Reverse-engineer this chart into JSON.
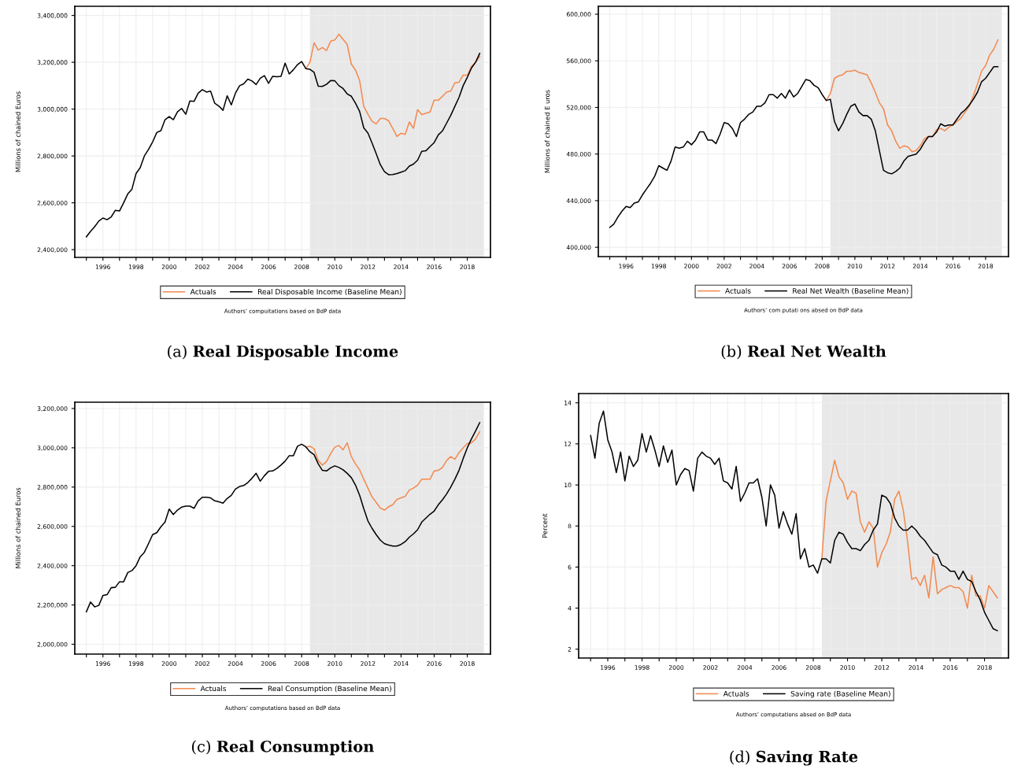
{
  "chart_data": [
    {
      "type": "line",
      "title": "(a) Real Disposable Income",
      "ylabel": "Millions of chained Euros",
      "annotations": [
        "Authors’ compuitations based on BdP data"
      ],
      "x": [
        1995,
        1995.25,
        1995.5,
        1995.75,
        1996,
        1996.25,
        1996.5,
        1996.75,
        1997,
        1997.25,
        1997.5,
        1997.75,
        1998,
        1998.25,
        1998.5,
        1998.75,
        1999,
        1999.25,
        1999.5,
        1999.75,
        2000,
        2000.25,
        2000.5,
        2000.75,
        2001,
        2001.25,
        2001.5,
        2001.75,
        2002,
        2002.25,
        2002.5,
        2002.75,
        2003,
        2003.25,
        2003.5,
        2003.75,
        2004,
        2004.25,
        2004.5,
        2004.75,
        2005,
        2005.25,
        2005.5,
        2005.75,
        2006,
        2006.25,
        2006.5,
        2006.75,
        2007,
        2007.25,
        2007.5,
        2007.75,
        2008,
        2008.25,
        2008.5,
        2008.75,
        2009,
        2009.25,
        2009.5,
        2009.75,
        2010,
        2010.25,
        2010.5,
        2010.75,
        2011,
        2011.25,
        2011.5,
        2011.75,
        2012,
        2012.25,
        2012.5,
        2012.75,
        2013,
        2013.25,
        2013.5,
        2013.75,
        2014,
        2014.25,
        2014.5,
        2014.75,
        2015,
        2015.25,
        2015.5,
        2015.75,
        2016,
        2016.25,
        2016.5,
        2016.75,
        2017,
        2017.25,
        2017.5,
        2017.75,
        2018,
        2018.25,
        2018.5,
        2018.75
      ],
      "series": [
        {
          "name": "Actuals",
          "color": "#f4894f",
          "values": [
            null,
            null,
            null,
            null,
            null,
            null,
            null,
            null,
            null,
            null,
            null,
            null,
            null,
            null,
            null,
            null,
            null,
            null,
            null,
            null,
            null,
            null,
            null,
            null,
            null,
            null,
            null,
            null,
            null,
            null,
            null,
            null,
            null,
            null,
            null,
            null,
            null,
            null,
            null,
            null,
            null,
            null,
            null,
            null,
            null,
            null,
            null,
            null,
            null,
            null,
            null,
            null,
            null,
            3173000,
            3200000,
            3283000,
            3252000,
            3263000,
            3250000,
            3290000,
            3295000,
            3320000,
            3298000,
            3276000,
            3192000,
            3167000,
            3122000,
            3012000,
            2978000,
            2948000,
            2937000,
            2960000,
            2960000,
            2950000,
            2918000,
            2883000,
            2897000,
            2892000,
            2945000,
            2918000,
            2998000,
            2977000,
            2982000,
            2988000,
            3038000,
            3038000,
            3055000,
            3073000,
            3077000,
            3112000,
            3115000,
            3145000,
            3145000,
            3182000,
            3200000,
            3225000
          ]
        },
        {
          "name": "Real Disposable Income (Baseline Mean)",
          "color": "#000000",
          "values": [
            2455000,
            2478000,
            2498000,
            2522000,
            2535000,
            2528000,
            2540000,
            2568000,
            2565000,
            2600000,
            2638000,
            2658000,
            2725000,
            2750000,
            2800000,
            2828000,
            2860000,
            2900000,
            2908000,
            2955000,
            2968000,
            2955000,
            2988000,
            3003000,
            2978000,
            3035000,
            3033000,
            3068000,
            3083000,
            3073000,
            3077000,
            3025000,
            3013000,
            2995000,
            3057000,
            3018000,
            3068000,
            3100000,
            3108000,
            3128000,
            3120000,
            3105000,
            3132000,
            3143000,
            3110000,
            3140000,
            3138000,
            3140000,
            3196000,
            3150000,
            3168000,
            3190000,
            3203000,
            3173000,
            3170000,
            3157000,
            3098000,
            3097000,
            3106000,
            3122000,
            3121000,
            3100000,
            3088000,
            3065000,
            3055000,
            3025000,
            2990000,
            2920000,
            2898000,
            2855000,
            2810000,
            2763000,
            2733000,
            2720000,
            2721000,
            2725000,
            2731000,
            2737000,
            2757000,
            2765000,
            2782000,
            2820000,
            2822000,
            2840000,
            2857000,
            2890000,
            2907000,
            2940000,
            2973000,
            3012000,
            3050000,
            3100000,
            3135000,
            3175000,
            3200000,
            3238000
          ]
        }
      ],
      "xlim": [
        1994.3,
        2019.4
      ],
      "ylim": [
        2367000,
        3439000
      ],
      "xticks": [
        {
          "value": 1995,
          "label": null
        },
        {
          "value": 1996,
          "label": "1996"
        },
        {
          "value": 1997,
          "label": null
        },
        {
          "value": 1998,
          "label": "1998"
        },
        {
          "value": 1999,
          "label": null
        },
        {
          "value": 2000,
          "label": "2000"
        },
        {
          "value": 2001,
          "label": null
        },
        {
          "value": 2002,
          "label": "2002"
        },
        {
          "value": 2003,
          "label": null
        },
        {
          "value": 2004,
          "label": "2004"
        },
        {
          "value": 2005,
          "label": null
        },
        {
          "value": 2006,
          "label": "2006"
        },
        {
          "value": 2007,
          "label": null
        },
        {
          "value": 2008,
          "label": "2008"
        },
        {
          "value": 2009,
          "label": null
        },
        {
          "value": 2010,
          "label": "2010"
        },
        {
          "value": 2011,
          "label": null
        },
        {
          "value": 2012,
          "label": "2012"
        },
        {
          "value": 2013,
          "label": null
        },
        {
          "value": 2014,
          "label": "2014"
        },
        {
          "value": 2015,
          "label": null
        },
        {
          "value": 2016,
          "label": "2016"
        },
        {
          "value": 2017,
          "label": null
        },
        {
          "value": 2018,
          "label": "2018"
        }
      ],
      "yticks": [
        {
          "value": 2400000,
          "label": "2,400,000"
        },
        {
          "value": 2600000,
          "label": "2,600,000"
        },
        {
          "value": 2800000,
          "label": "2,800,000"
        },
        {
          "value": 3000000,
          "label": "3,000,000"
        },
        {
          "value": 3200000,
          "label": "3,200,000"
        },
        {
          "value": 3400000,
          "label": "3,400,000"
        }
      ],
      "bands": [
        {
          "axis": "x",
          "from": 2008.5,
          "to": 2019.0,
          "color": "#e8e8e8"
        }
      ],
      "grid": true,
      "legend": "bottom",
      "line_style": "solid",
      "marker": "none"
    },
    {
      "type": "line",
      "title": "(b) Real Net Wealth",
      "ylabel": "Millions of chained E uros",
      "annotations": [
        "Authors’ com putati ons absed on BdP data"
      ],
      "x": [
        1995,
        1995.25,
        1995.5,
        1995.75,
        1996,
        1996.25,
        1996.5,
        1996.75,
        1997,
        1997.25,
        1997.5,
        1997.75,
        1998,
        1998.25,
        1998.5,
        1998.75,
        1999,
        1999.25,
        1999.5,
        1999.75,
        2000,
        2000.25,
        2000.5,
        2000.75,
        2001,
        2001.25,
        2001.5,
        2001.75,
        2002,
        2002.25,
        2002.5,
        2002.75,
        2003,
        2003.25,
        2003.5,
        2003.75,
        2004,
        2004.25,
        2004.5,
        2004.75,
        2005,
        2005.25,
        2005.5,
        2005.75,
        2006,
        2006.25,
        2006.5,
        2006.75,
        2007,
        2007.25,
        2007.5,
        2007.75,
        2008,
        2008.25,
        2008.5,
        2008.75,
        2009,
        2009.25,
        2009.5,
        2009.75,
        2010,
        2010.25,
        2010.5,
        2010.75,
        2011,
        2011.25,
        2011.5,
        2011.75,
        2012,
        2012.25,
        2012.5,
        2012.75,
        2013,
        2013.25,
        2013.5,
        2013.75,
        2014,
        2014.25,
        2014.5,
        2014.75,
        2015,
        2015.25,
        2015.5,
        2015.75,
        2016,
        2016.25,
        2016.5,
        2016.75,
        2017,
        2017.25,
        2017.5,
        2017.75,
        2018,
        2018.25,
        2018.5,
        2018.75
      ],
      "series": [
        {
          "name": "Actuals",
          "color": "#f4894f",
          "values": [
            null,
            null,
            null,
            null,
            null,
            null,
            null,
            null,
            null,
            null,
            null,
            null,
            null,
            null,
            null,
            null,
            null,
            null,
            null,
            null,
            null,
            null,
            null,
            null,
            null,
            null,
            null,
            null,
            null,
            null,
            null,
            null,
            null,
            null,
            null,
            null,
            null,
            null,
            null,
            null,
            null,
            null,
            null,
            null,
            null,
            null,
            null,
            null,
            null,
            null,
            null,
            null,
            null,
            526000,
            532000,
            545000,
            547000,
            548000,
            551000,
            551000,
            552000,
            550000,
            549000,
            548000,
            541000,
            533000,
            524000,
            519000,
            505000,
            500000,
            491000,
            485000,
            487000,
            486000,
            482000,
            483000,
            487000,
            493000,
            495000,
            495000,
            501000,
            502000,
            500000,
            503000,
            505000,
            508000,
            511000,
            516000,
            521000,
            530000,
            540000,
            551000,
            556000,
            565000,
            570000,
            578000
          ]
        },
        {
          "name": "Real Net Wealth (Baseline Mean)",
          "color": "#000000",
          "values": [
            417000,
            420000,
            426000,
            431000,
            435000,
            434000,
            438000,
            439000,
            445000,
            450000,
            455000,
            461000,
            470000,
            468000,
            466000,
            474000,
            486000,
            485000,
            486000,
            491000,
            488000,
            492000,
            499000,
            499000,
            492000,
            492000,
            489000,
            497000,
            507000,
            506000,
            502000,
            495000,
            507000,
            510000,
            514000,
            516000,
            521000,
            521000,
            524000,
            531000,
            531000,
            528000,
            532000,
            528000,
            535000,
            529000,
            532000,
            538000,
            544000,
            543000,
            539000,
            537000,
            531000,
            526000,
            527000,
            508000,
            500000,
            506000,
            514000,
            521000,
            523000,
            516000,
            513000,
            513000,
            510000,
            500000,
            483000,
            466000,
            464000,
            463000,
            465000,
            468000,
            474000,
            478000,
            479000,
            480000,
            484000,
            490000,
            495000,
            495000,
            499000,
            506000,
            504000,
            505000,
            505000,
            510000,
            515000,
            518000,
            522000,
            527000,
            533000,
            542000,
            545000,
            550000,
            555000,
            555000
          ]
        }
      ],
      "xlim": [
        1994.3,
        2019.4
      ],
      "ylim": [
        392000,
        606800
      ],
      "xticks": [
        {
          "value": 1995,
          "label": null
        },
        {
          "value": 1996,
          "label": "1996"
        },
        {
          "value": 1997,
          "label": null
        },
        {
          "value": 1998,
          "label": "1998"
        },
        {
          "value": 1999,
          "label": null
        },
        {
          "value": 2000,
          "label": "2000"
        },
        {
          "value": 2001,
          "label": null
        },
        {
          "value": 2002,
          "label": "2002"
        },
        {
          "value": 2003,
          "label": null
        },
        {
          "value": 2004,
          "label": "2004"
        },
        {
          "value": 2005,
          "label": null
        },
        {
          "value": 2006,
          "label": "2006"
        },
        {
          "value": 2007,
          "label": null
        },
        {
          "value": 2008,
          "label": "2008"
        },
        {
          "value": 2009,
          "label": null
        },
        {
          "value": 2010,
          "label": "2010"
        },
        {
          "value": 2011,
          "label": null
        },
        {
          "value": 2012,
          "label": "2012"
        },
        {
          "value": 2013,
          "label": null
        },
        {
          "value": 2014,
          "label": "2014"
        },
        {
          "value": 2015,
          "label": null
        },
        {
          "value": 2016,
          "label": "2016"
        },
        {
          "value": 2017,
          "label": null
        },
        {
          "value": 2018,
          "label": "2018"
        }
      ],
      "yticks": [
        {
          "value": 400000,
          "label": "400,000"
        },
        {
          "value": 440000,
          "label": "440,000"
        },
        {
          "value": 480000,
          "label": "480,000"
        },
        {
          "value": 520000,
          "label": "520,000"
        },
        {
          "value": 560000,
          "label": "560,000"
        },
        {
          "value": 600000,
          "label": "600,000"
        }
      ],
      "bands": [
        {
          "axis": "x",
          "from": 2008.5,
          "to": 2019.0,
          "color": "#e8e8e8"
        }
      ],
      "grid": true,
      "legend": "bottom",
      "line_style": "solid",
      "marker": "none"
    },
    {
      "type": "line",
      "title": "(c) Real Consumption",
      "ylabel": "Millions of chained Euros",
      "annotations": [
        "Authors’ computations based on BdP data"
      ],
      "x": [
        1995,
        1995.25,
        1995.5,
        1995.75,
        1996,
        1996.25,
        1996.5,
        1996.75,
        1997,
        1997.25,
        1997.5,
        1997.75,
        1998,
        1998.25,
        1998.5,
        1998.75,
        1999,
        1999.25,
        1999.5,
        1999.75,
        2000,
        2000.25,
        2000.5,
        2000.75,
        2001,
        2001.25,
        2001.5,
        2001.75,
        2002,
        2002.25,
        2002.5,
        2002.75,
        2003,
        2003.25,
        2003.5,
        2003.75,
        2004,
        2004.25,
        2004.5,
        2004.75,
        2005,
        2005.25,
        2005.5,
        2005.75,
        2006,
        2006.25,
        2006.5,
        2006.75,
        2007,
        2007.25,
        2007.5,
        2007.75,
        2008,
        2008.25,
        2008.5,
        2008.75,
        2009,
        2009.25,
        2009.5,
        2009.75,
        2010,
        2010.25,
        2010.5,
        2010.75,
        2011,
        2011.25,
        2011.5,
        2011.75,
        2012,
        2012.25,
        2012.5,
        2012.75,
        2013,
        2013.25,
        2013.5,
        2013.75,
        2014,
        2014.25,
        2014.5,
        2014.75,
        2015,
        2015.25,
        2015.5,
        2015.75,
        2016,
        2016.25,
        2016.5,
        2016.75,
        2017,
        2017.25,
        2017.5,
        2017.75,
        2018,
        2018.25,
        2018.5,
        2018.75
      ],
      "series": [
        {
          "name": "Actuals",
          "color": "#f4894f",
          "values": [
            null,
            null,
            null,
            null,
            null,
            null,
            null,
            null,
            null,
            null,
            null,
            null,
            null,
            null,
            null,
            null,
            null,
            null,
            null,
            null,
            null,
            null,
            null,
            null,
            null,
            null,
            null,
            null,
            null,
            null,
            null,
            null,
            null,
            null,
            null,
            null,
            null,
            null,
            null,
            null,
            null,
            null,
            null,
            null,
            null,
            null,
            null,
            null,
            null,
            null,
            null,
            null,
            null,
            3005000,
            3008000,
            2995000,
            2935000,
            2912000,
            2930000,
            2970000,
            3003000,
            3012000,
            2990000,
            3025000,
            2955000,
            2918000,
            2888000,
            2840000,
            2795000,
            2750000,
            2722000,
            2693000,
            2683000,
            2700000,
            2710000,
            2737000,
            2745000,
            2753000,
            2785000,
            2795000,
            2810000,
            2840000,
            2840000,
            2840000,
            2882000,
            2885000,
            2900000,
            2935000,
            2955000,
            2942000,
            2975000,
            3000000,
            3022000,
            3025000,
            3045000,
            3082000
          ]
        },
        {
          "name": "Real Consumption (Baseline Mean)",
          "color": "#000000",
          "values": [
            2165000,
            2215000,
            2190000,
            2198000,
            2248000,
            2252000,
            2288000,
            2290000,
            2318000,
            2318000,
            2365000,
            2375000,
            2400000,
            2445000,
            2468000,
            2512000,
            2558000,
            2568000,
            2598000,
            2622000,
            2688000,
            2660000,
            2683000,
            2698000,
            2703000,
            2703000,
            2692000,
            2730000,
            2748000,
            2748000,
            2745000,
            2730000,
            2725000,
            2718000,
            2742000,
            2758000,
            2790000,
            2803000,
            2808000,
            2823000,
            2845000,
            2870000,
            2830000,
            2858000,
            2880000,
            2882000,
            2895000,
            2912000,
            2932000,
            2960000,
            2960000,
            3008000,
            3018000,
            3005000,
            2980000,
            2965000,
            2918000,
            2885000,
            2882000,
            2898000,
            2908000,
            2900000,
            2888000,
            2870000,
            2848000,
            2810000,
            2758000,
            2690000,
            2628000,
            2590000,
            2558000,
            2530000,
            2512000,
            2505000,
            2500000,
            2500000,
            2508000,
            2522000,
            2545000,
            2562000,
            2583000,
            2622000,
            2642000,
            2662000,
            2678000,
            2710000,
            2735000,
            2765000,
            2800000,
            2840000,
            2885000,
            2945000,
            3000000,
            3045000,
            3085000,
            3128000
          ]
        }
      ],
      "xlim": [
        1994.3,
        2019.4
      ],
      "ylim": [
        1950000,
        3232000
      ],
      "xticks": [
        {
          "value": 1995,
          "label": null
        },
        {
          "value": 1996,
          "label": "1996"
        },
        {
          "value": 1997,
          "label": null
        },
        {
          "value": 1998,
          "label": "1998"
        },
        {
          "value": 1999,
          "label": null
        },
        {
          "value": 2000,
          "label": "2000"
        },
        {
          "value": 2001,
          "label": null
        },
        {
          "value": 2002,
          "label": "2002"
        },
        {
          "value": 2003,
          "label": null
        },
        {
          "value": 2004,
          "label": "2004"
        },
        {
          "value": 2005,
          "label": null
        },
        {
          "value": 2006,
          "label": "2006"
        },
        {
          "value": 2007,
          "label": null
        },
        {
          "value": 2008,
          "label": "2008"
        },
        {
          "value": 2009,
          "label": null
        },
        {
          "value": 2010,
          "label": "2010"
        },
        {
          "value": 2011,
          "label": null
        },
        {
          "value": 2012,
          "label": "2012"
        },
        {
          "value": 2013,
          "label": null
        },
        {
          "value": 2014,
          "label": "2014"
        },
        {
          "value": 2015,
          "label": null
        },
        {
          "value": 2016,
          "label": "2016"
        },
        {
          "value": 2017,
          "label": null
        },
        {
          "value": 2018,
          "label": "2018"
        }
      ],
      "yticks": [
        {
          "value": 2000000,
          "label": "2,000,000"
        },
        {
          "value": 2200000,
          "label": "2,200,000"
        },
        {
          "value": 2400000,
          "label": "2,400,000"
        },
        {
          "value": 2600000,
          "label": "2,600,000"
        },
        {
          "value": 2800000,
          "label": "2,800,000"
        },
        {
          "value": 3000000,
          "label": "3,000,000"
        },
        {
          "value": 3200000,
          "label": "3,200,000"
        }
      ],
      "bands": [
        {
          "axis": "x",
          "from": 2008.5,
          "to": 2019.0,
          "color": "#e8e8e8"
        }
      ],
      "grid": true,
      "legend": "bottom",
      "line_style": "solid",
      "marker": "none"
    },
    {
      "type": "line",
      "title": "(d) Saving Rate",
      "ylabel": "Percent",
      "annotations": [
        "Authors’ computations absed on BdP data"
      ],
      "x": [
        1995,
        1995.25,
        1995.5,
        1995.75,
        1996,
        1996.25,
        1996.5,
        1996.75,
        1997,
        1997.25,
        1997.5,
        1997.75,
        1998,
        1998.25,
        1998.5,
        1998.75,
        1999,
        1999.25,
        1999.5,
        1999.75,
        2000,
        2000.25,
        2000.5,
        2000.75,
        2001,
        2001.25,
        2001.5,
        2001.75,
        2002,
        2002.25,
        2002.5,
        2002.75,
        2003,
        2003.25,
        2003.5,
        2003.75,
        2004,
        2004.25,
        2004.5,
        2004.75,
        2005,
        2005.25,
        2005.5,
        2005.75,
        2006,
        2006.25,
        2006.5,
        2006.75,
        2007,
        2007.25,
        2007.5,
        2007.75,
        2008,
        2008.25,
        2008.5,
        2008.75,
        2009,
        2009.25,
        2009.5,
        2009.75,
        2010,
        2010.25,
        2010.5,
        2010.75,
        2011,
        2011.25,
        2011.5,
        2011.75,
        2012,
        2012.25,
        2012.5,
        2012.75,
        2013,
        2013.25,
        2013.5,
        2013.75,
        2014,
        2014.25,
        2014.5,
        2014.75,
        2015,
        2015.25,
        2015.5,
        2015.75,
        2016,
        2016.25,
        2016.5,
        2016.75,
        2017,
        2017.25,
        2017.5,
        2017.75,
        2018,
        2018.25,
        2018.5,
        2018.75
      ],
      "series": [
        {
          "name": "Actuals",
          "color": "#f4894f",
          "values": [
            null,
            null,
            null,
            null,
            null,
            null,
            null,
            null,
            null,
            null,
            null,
            null,
            null,
            null,
            null,
            null,
            null,
            null,
            null,
            null,
            null,
            null,
            null,
            null,
            null,
            null,
            null,
            null,
            null,
            null,
            null,
            null,
            null,
            null,
            null,
            null,
            null,
            null,
            null,
            null,
            null,
            null,
            null,
            null,
            null,
            null,
            null,
            null,
            null,
            null,
            null,
            null,
            null,
            null,
            6.4,
            9.2,
            10.2,
            11.2,
            10.4,
            10.1,
            9.3,
            9.7,
            9.6,
            8.2,
            7.7,
            8.2,
            7.9,
            6.0,
            6.7,
            7.1,
            7.7,
            9.3,
            9.7,
            8.8,
            7.3,
            5.4,
            5.5,
            5.1,
            5.6,
            4.5,
            6.5,
            4.7,
            4.9,
            5.0,
            5.1,
            5.0,
            5.0,
            4.8,
            4.0,
            5.6,
            4.6,
            4.6,
            4.0,
            5.1,
            4.8,
            4.5
          ]
        },
        {
          "name": "Saving rate (Baseline Mean)",
          "color": "#000000",
          "values": [
            12.4,
            11.3,
            13.0,
            13.6,
            12.2,
            11.6,
            10.6,
            11.6,
            10.2,
            11.4,
            10.9,
            11.2,
            12.5,
            11.6,
            12.4,
            11.7,
            10.9,
            11.9,
            11.1,
            11.7,
            10.0,
            10.5,
            10.8,
            10.7,
            9.7,
            11.3,
            11.6,
            11.4,
            11.3,
            11.0,
            11.3,
            10.2,
            10.1,
            9.8,
            10.9,
            9.2,
            9.6,
            10.1,
            10.1,
            10.3,
            9.4,
            8.0,
            10.0,
            9.5,
            7.9,
            8.7,
            8.1,
            7.6,
            8.6,
            6.4,
            6.9,
            6.0,
            6.1,
            5.7,
            6.4,
            6.4,
            6.2,
            7.3,
            7.7,
            7.6,
            7.2,
            6.9,
            6.9,
            6.8,
            7.1,
            7.3,
            7.8,
            8.1,
            9.5,
            9.4,
            9.1,
            8.4,
            8.0,
            7.8,
            7.8,
            8.0,
            7.8,
            7.5,
            7.3,
            7.0,
            6.7,
            6.6,
            6.1,
            6.0,
            5.8,
            5.8,
            5.4,
            5.8,
            5.4,
            5.3,
            4.8,
            4.4,
            3.8,
            3.4,
            3.0,
            2.9
          ]
        }
      ],
      "xlim": [
        1994.3,
        2019.4
      ],
      "ylim": [
        1.57,
        14.45
      ],
      "xticks": [
        {
          "value": 1995,
          "label": null
        },
        {
          "value": 1996,
          "label": "1996"
        },
        {
          "value": 1997,
          "label": null
        },
        {
          "value": 1998,
          "label": "1998"
        },
        {
          "value": 1999,
          "label": null
        },
        {
          "value": 2000,
          "label": "2000"
        },
        {
          "value": 2001,
          "label": null
        },
        {
          "value": 2002,
          "label": "2002"
        },
        {
          "value": 2003,
          "label": null
        },
        {
          "value": 2004,
          "label": "2004"
        },
        {
          "value": 2005,
          "label": null
        },
        {
          "value": 2006,
          "label": "2006"
        },
        {
          "value": 2007,
          "label": null
        },
        {
          "value": 2008,
          "label": "2008"
        },
        {
          "value": 2009,
          "label": null
        },
        {
          "value": 2010,
          "label": "2010"
        },
        {
          "value": 2011,
          "label": null
        },
        {
          "value": 2012,
          "label": "2012"
        },
        {
          "value": 2013,
          "label": null
        },
        {
          "value": 2014,
          "label": "2014"
        },
        {
          "value": 2015,
          "label": null
        },
        {
          "value": 2016,
          "label": "2016"
        },
        {
          "value": 2017,
          "label": null
        },
        {
          "value": 2018,
          "label": "2018"
        }
      ],
      "yticks": [
        2,
        4,
        6,
        8,
        10,
        12,
        14
      ],
      "bands": [
        {
          "axis": "x",
          "from": 2008.5,
          "to": 2019.0,
          "color": "#e8e8e8"
        }
      ],
      "grid": true,
      "legend": "bottom",
      "line_style": "solid",
      "marker": "none"
    }
  ]
}
